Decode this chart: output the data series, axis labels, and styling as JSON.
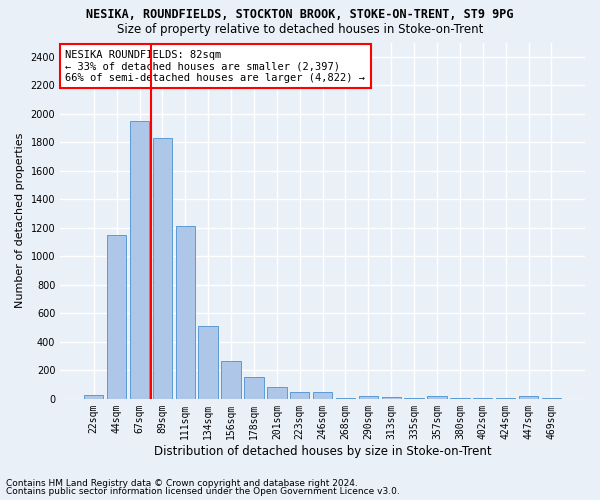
{
  "title1": "NESIKA, ROUNDFIELDS, STOCKTON BROOK, STOKE-ON-TRENT, ST9 9PG",
  "title2": "Size of property relative to detached houses in Stoke-on-Trent",
  "xlabel": "Distribution of detached houses by size in Stoke-on-Trent",
  "ylabel": "Number of detached properties",
  "footer1": "Contains HM Land Registry data © Crown copyright and database right 2024.",
  "footer2": "Contains public sector information licensed under the Open Government Licence v3.0.",
  "annotation_title": "NESIKA ROUNDFIELDS: 82sqm",
  "annotation_line1": "← 33% of detached houses are smaller (2,397)",
  "annotation_line2": "66% of semi-detached houses are larger (4,822) →",
  "bar_categories": [
    "22sqm",
    "44sqm",
    "67sqm",
    "89sqm",
    "111sqm",
    "134sqm",
    "156sqm",
    "178sqm",
    "201sqm",
    "223sqm",
    "246sqm",
    "268sqm",
    "290sqm",
    "313sqm",
    "335sqm",
    "357sqm",
    "380sqm",
    "402sqm",
    "424sqm",
    "447sqm",
    "469sqm"
  ],
  "bar_values": [
    30,
    1150,
    1950,
    1830,
    1210,
    510,
    265,
    155,
    80,
    50,
    45,
    5,
    20,
    15,
    5,
    20,
    5,
    5,
    5,
    20,
    5
  ],
  "bar_color": "#aec6e8",
  "bar_edge_color": "#5b9bd5",
  "vline_x": 2.5,
  "vline_color": "red",
  "ylim": [
    0,
    2500
  ],
  "yticks": [
    0,
    200,
    400,
    600,
    800,
    1000,
    1200,
    1400,
    1600,
    1800,
    2000,
    2200,
    2400
  ],
  "background_color": "#eaf0f8",
  "grid_color": "#ffffff",
  "annotation_box_color": "white",
  "annotation_box_edge": "red",
  "title1_fontsize": 8.5,
  "title2_fontsize": 8.5,
  "ylabel_fontsize": 8,
  "xlabel_fontsize": 8.5,
  "tick_fontsize": 7,
  "footer_fontsize": 6.5,
  "annotation_fontsize": 7.5
}
